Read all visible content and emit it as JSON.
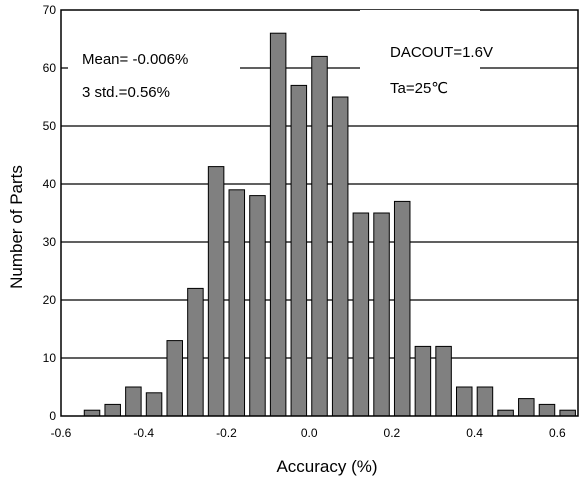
{
  "chart_data": {
    "type": "bar",
    "title": "",
    "xlabel": "Accuracy (%)",
    "ylabel": "Number of Parts",
    "xlim": [
      -0.6,
      0.65
    ],
    "ylim": [
      0,
      70
    ],
    "grid": "horizontal",
    "bar_color": "#808080",
    "x": [
      -0.525,
      -0.475,
      -0.425,
      -0.375,
      -0.325,
      -0.275,
      -0.225,
      -0.175,
      -0.125,
      -0.075,
      -0.025,
      0.025,
      0.075,
      0.125,
      0.175,
      0.225,
      0.275,
      0.325,
      0.375,
      0.425,
      0.475,
      0.525,
      0.575,
      0.625
    ],
    "values": [
      1,
      2,
      5,
      4,
      13,
      22,
      43,
      39,
      38,
      66,
      57,
      62,
      55,
      35,
      35,
      37,
      12,
      12,
      5,
      5,
      1,
      3,
      2,
      1
    ],
    "x_ticks": [
      {
        "value": -0.6,
        "label": "-0.6"
      },
      {
        "value": -0.4,
        "label": "-0.4"
      },
      {
        "value": -0.2,
        "label": "-0.2"
      },
      {
        "value": 0.0,
        "label": "0.0"
      },
      {
        "value": 0.2,
        "label": "0.2"
      },
      {
        "value": 0.4,
        "label": "0.4"
      },
      {
        "value": 0.6,
        "label": "0.6"
      }
    ],
    "y_ticks": [
      {
        "value": 0,
        "label": "0"
      },
      {
        "value": 10,
        "label": "10"
      },
      {
        "value": 20,
        "label": "20"
      },
      {
        "value": 30,
        "label": "30"
      },
      {
        "value": 40,
        "label": "40"
      },
      {
        "value": 50,
        "label": "50"
      },
      {
        "value": 60,
        "label": "60"
      },
      {
        "value": 70,
        "label": "70"
      }
    ],
    "annotations": {
      "mean": "Mean= -0.006%",
      "std": "3 std.=0.56%",
      "dacout": "DACOUT=1.6V",
      "ta": "Ta=25℃"
    }
  }
}
